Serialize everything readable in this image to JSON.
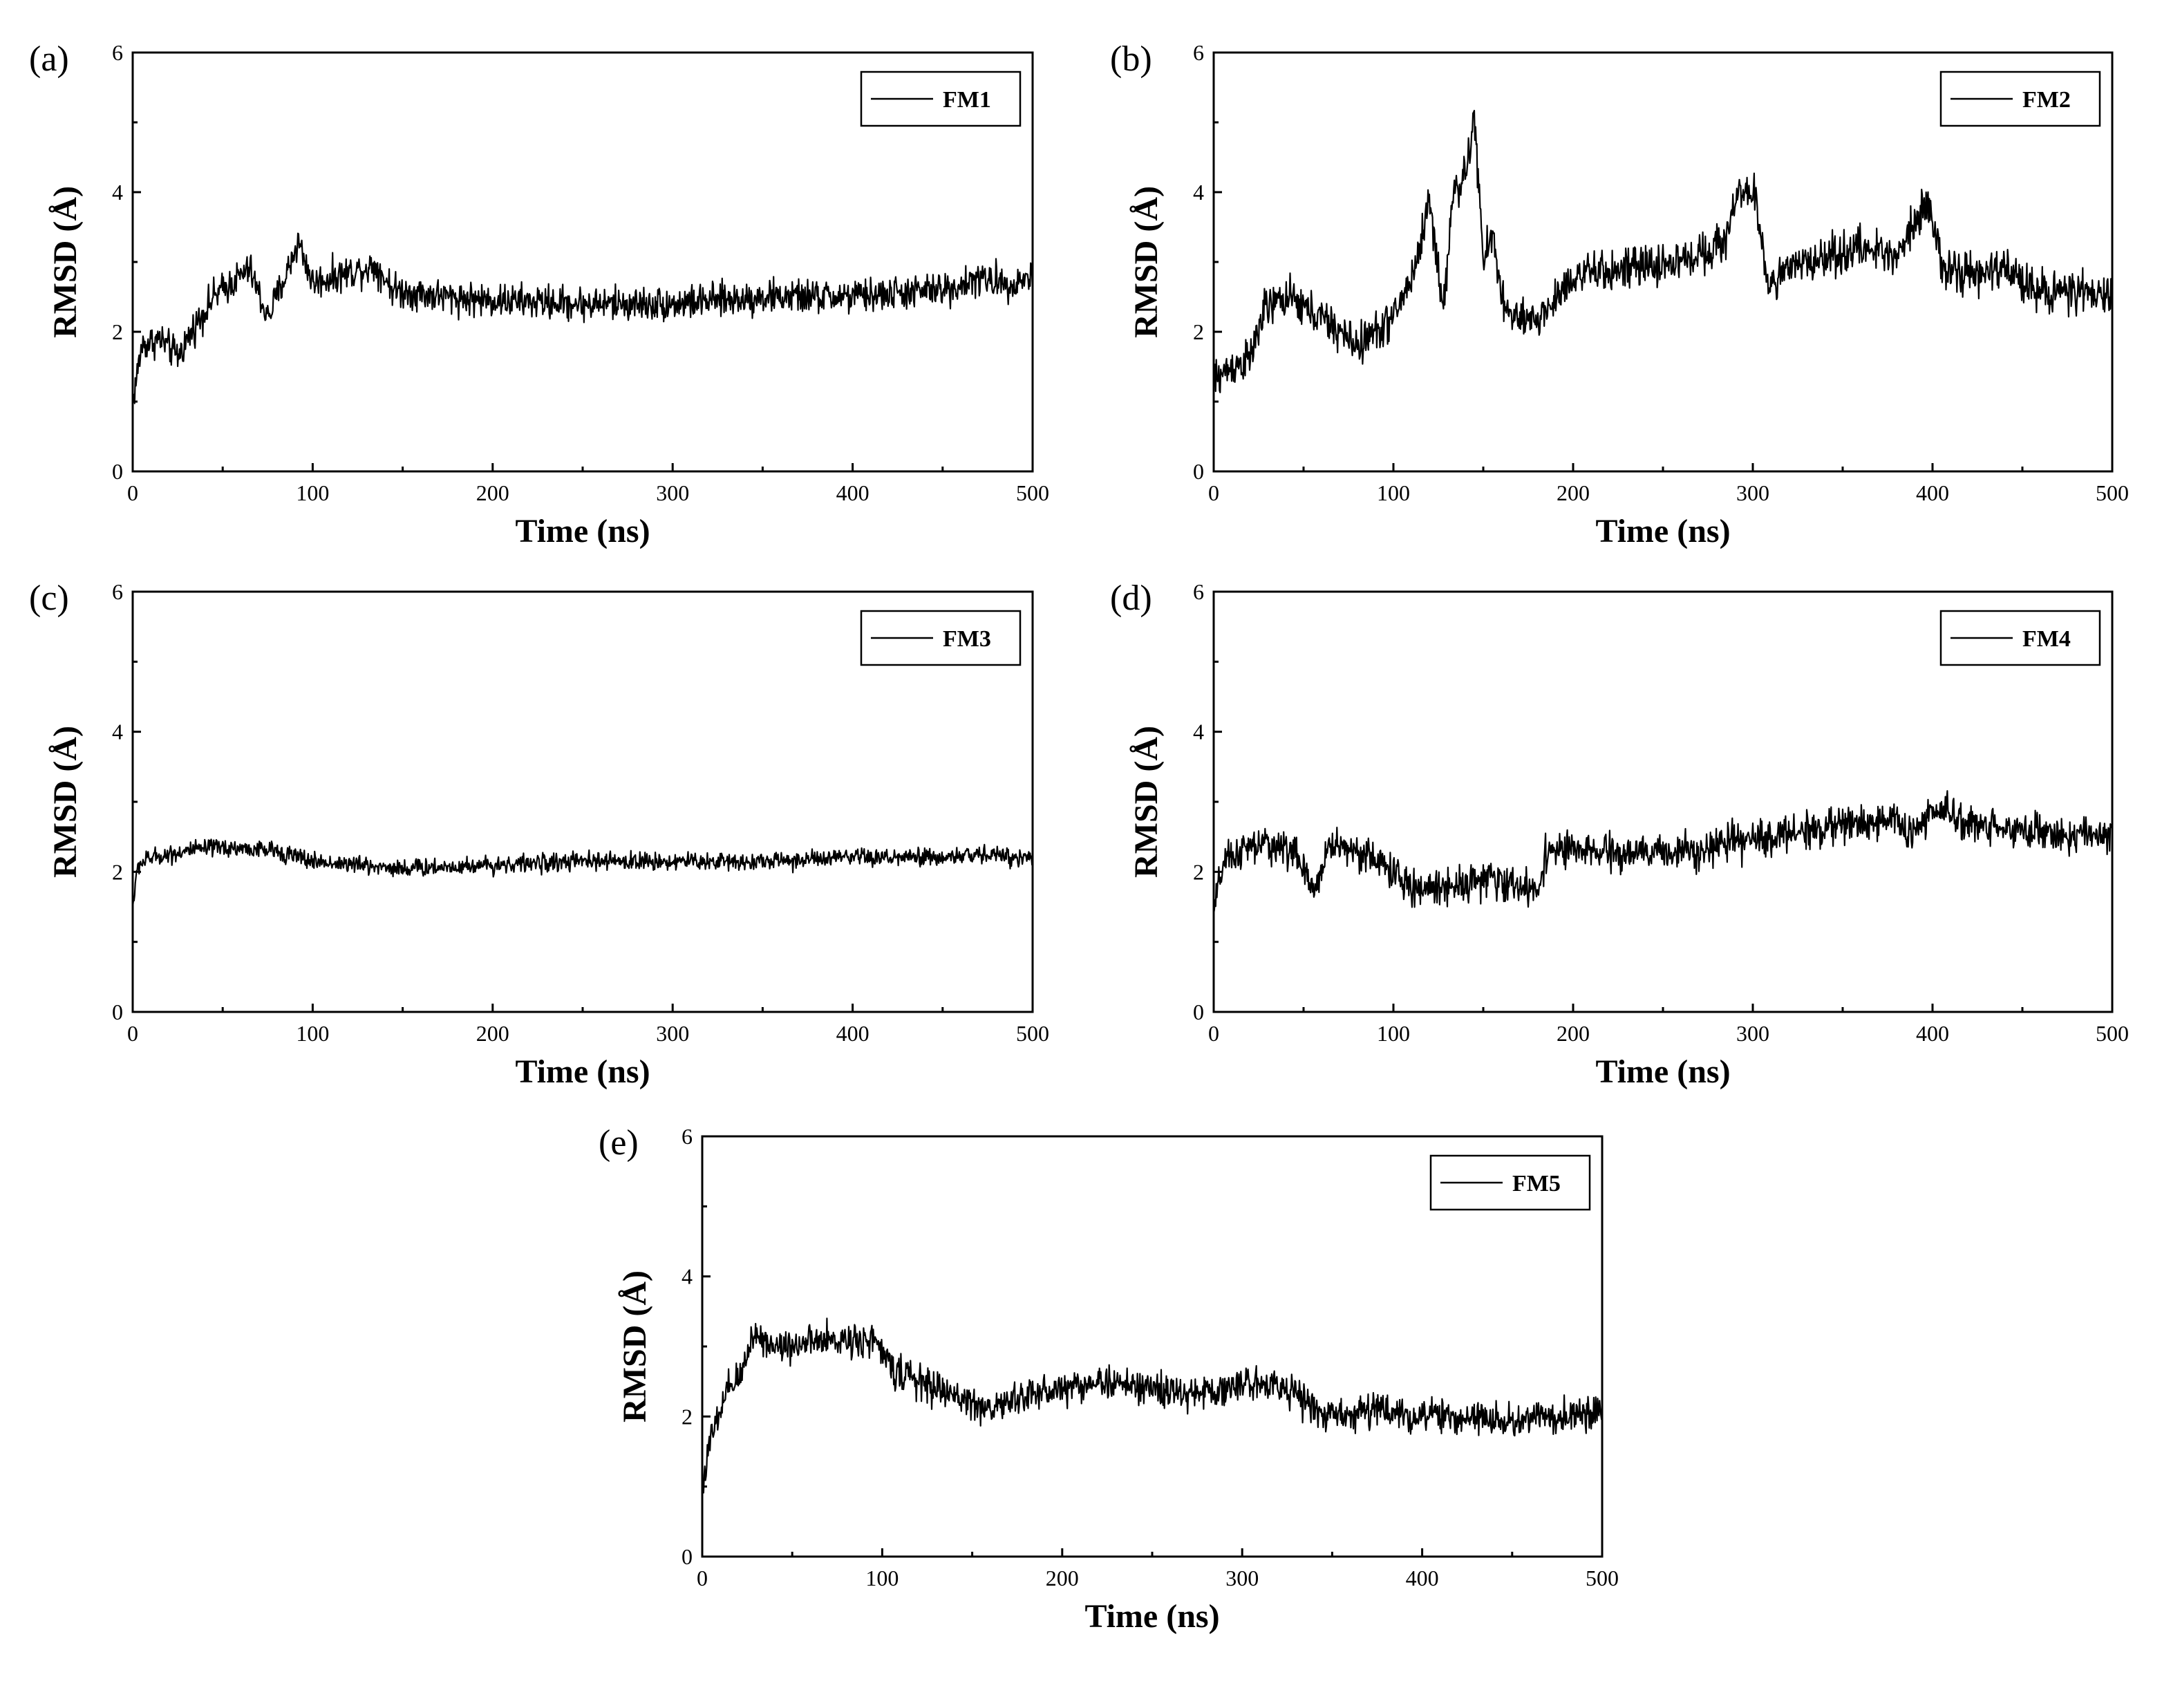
{
  "chart_data": [
    {
      "panel": "(a)",
      "type": "line",
      "xlabel": "Time (ns)",
      "ylabel": "RMSD (Å)",
      "xlim": [
        0,
        500
      ],
      "ylim": [
        0,
        6
      ],
      "xticks": [
        0,
        100,
        200,
        300,
        400,
        500
      ],
      "yticks": [
        0,
        2,
        4,
        6
      ],
      "legend": "FM1",
      "legend_position": "top-right",
      "noise": 0.15,
      "series": [
        {
          "name": "FM1",
          "x": [
            0,
            5,
            15,
            25,
            35,
            45,
            55,
            65,
            75,
            85,
            92,
            100,
            120,
            135,
            145,
            175,
            200,
            250,
            300,
            350,
            400,
            450,
            470,
            490,
            500
          ],
          "y": [
            1.0,
            1.8,
            1.9,
            1.65,
            2.1,
            2.5,
            2.7,
            2.9,
            2.2,
            2.8,
            3.3,
            2.7,
            2.85,
            2.95,
            2.6,
            2.5,
            2.45,
            2.4,
            2.4,
            2.5,
            2.5,
            2.6,
            2.75,
            2.7,
            2.8
          ]
        }
      ]
    },
    {
      "panel": "(b)",
      "type": "line",
      "xlabel": "Time (ns)",
      "ylabel": "RMSD (Å)",
      "xlim": [
        0,
        500
      ],
      "ylim": [
        0,
        6
      ],
      "xticks": [
        0,
        100,
        200,
        300,
        400,
        500
      ],
      "yticks": [
        0,
        2,
        4,
        6
      ],
      "legend": "FM2",
      "legend_position": "top-right",
      "noise": 0.18,
      "series": [
        {
          "name": "FM2",
          "x": [
            0,
            10,
            20,
            28,
            40,
            60,
            80,
            100,
            112,
            120,
            128,
            133,
            140,
            145,
            150,
            155,
            162,
            175,
            185,
            200,
            230,
            260,
            285,
            292,
            298,
            302,
            308,
            330,
            360,
            380,
            390,
            398,
            405,
            420,
            440,
            460,
            500
          ],
          "y": [
            1.3,
            1.5,
            1.6,
            2.3,
            2.5,
            2.2,
            1.8,
            2.2,
            2.9,
            3.9,
            2.3,
            4.0,
            4.2,
            5.1,
            3.0,
            3.4,
            2.3,
            2.1,
            2.3,
            2.8,
            2.9,
            3.0,
            3.3,
            4.1,
            3.9,
            3.9,
            2.7,
            3.0,
            3.2,
            3.1,
            3.6,
            3.9,
            2.9,
            2.8,
            2.9,
            2.6,
            2.5
          ]
        }
      ]
    },
    {
      "panel": "(c)",
      "type": "line",
      "xlabel": "Time (ns)",
      "ylabel": "RMSD (Å)",
      "xlim": [
        0,
        500
      ],
      "ylim": [
        0,
        6
      ],
      "xticks": [
        0,
        100,
        200,
        300,
        400,
        500
      ],
      "yticks": [
        0,
        2,
        4,
        6
      ],
      "legend": "FM3",
      "legend_position": "top-right",
      "noise": 0.08,
      "series": [
        {
          "name": "FM3",
          "x": [
            0,
            3,
            10,
            30,
            50,
            80,
            100,
            150,
            200,
            250,
            300,
            350,
            400,
            450,
            470,
            500
          ],
          "y": [
            1.5,
            2.1,
            2.2,
            2.3,
            2.35,
            2.3,
            2.15,
            2.05,
            2.1,
            2.15,
            2.15,
            2.15,
            2.2,
            2.2,
            2.25,
            2.2
          ]
        }
      ]
    },
    {
      "panel": "(d)",
      "type": "line",
      "xlabel": "Time (ns)",
      "ylabel": "RMSD (Å)",
      "xlim": [
        0,
        500
      ],
      "ylim": [
        0,
        6
      ],
      "xticks": [
        0,
        100,
        200,
        300,
        400,
        500
      ],
      "yticks": [
        0,
        2,
        4,
        6
      ],
      "legend": "FM4",
      "legend_position": "top-right",
      "noise": 0.16,
      "series": [
        {
          "name": "FM4",
          "x": [
            0,
            5,
            15,
            30,
            45,
            55,
            65,
            80,
            95,
            110,
            130,
            150,
            170,
            180,
            185,
            200,
            230,
            260,
            300,
            330,
            360,
            380,
            390,
            400,
            420,
            450,
            480,
            500
          ],
          "y": [
            1.4,
            2.1,
            2.3,
            2.4,
            2.3,
            1.7,
            2.4,
            2.3,
            2.1,
            1.75,
            1.8,
            1.9,
            1.8,
            1.7,
            2.3,
            2.3,
            2.25,
            2.3,
            2.45,
            2.6,
            2.7,
            2.75,
            2.5,
            2.9,
            2.7,
            2.6,
            2.5,
            2.55
          ]
        }
      ]
    },
    {
      "panel": "(e)",
      "type": "line",
      "xlabel": "Time (ns)",
      "ylabel": "RMSD (Å)",
      "xlim": [
        0,
        500
      ],
      "ylim": [
        0,
        6
      ],
      "xticks": [
        0,
        100,
        200,
        300,
        400,
        500
      ],
      "yticks": [
        0,
        2,
        4,
        6
      ],
      "legend": "FM5",
      "legend_position": "top-right",
      "noise": 0.15,
      "series": [
        {
          "name": "FM5",
          "x": [
            0,
            5,
            15,
            22,
            28,
            40,
            60,
            80,
            95,
            105,
            120,
            140,
            160,
            180,
            200,
            220,
            250,
            270,
            300,
            320,
            340,
            350,
            370,
            400,
            450,
            480,
            500
          ],
          "y": [
            1.0,
            1.7,
            2.4,
            2.6,
            3.2,
            3.0,
            3.05,
            3.1,
            3.1,
            2.7,
            2.5,
            2.3,
            2.1,
            2.3,
            2.4,
            2.5,
            2.4,
            2.3,
            2.45,
            2.5,
            2.1,
            2.0,
            2.1,
            2.0,
            1.95,
            2.0,
            2.1
          ]
        }
      ]
    }
  ]
}
